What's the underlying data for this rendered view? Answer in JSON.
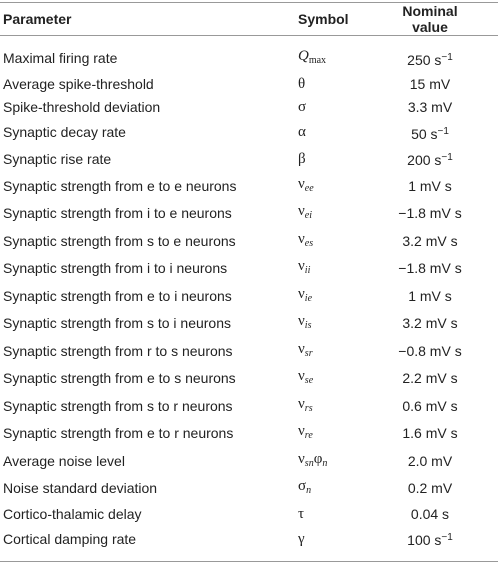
{
  "table": {
    "header": [
      "Parameter",
      "Symbol",
      "Nominal value"
    ],
    "rows": [
      {
        "parameter": "Maximal firing rate",
        "symbol": [
          {
            "text": "Q",
            "italic": true
          },
          {
            "text": "max",
            "sub": true
          }
        ],
        "value": [
          {
            "text": "250 s"
          },
          {
            "text": "−1",
            "sup": true
          }
        ]
      },
      {
        "parameter": "Average spike-threshold",
        "symbol": [
          {
            "text": "θ"
          }
        ],
        "value": [
          {
            "text": "15 mV"
          }
        ]
      },
      {
        "parameter": "Spike-threshold deviation",
        "symbol": [
          {
            "text": "σ"
          }
        ],
        "value": [
          {
            "text": "3.3 mV"
          }
        ]
      },
      {
        "parameter": "Synaptic decay rate",
        "symbol": [
          {
            "text": "α"
          }
        ],
        "value": [
          {
            "text": "50 s"
          },
          {
            "text": "−1",
            "sup": true
          }
        ]
      },
      {
        "parameter": "Synaptic rise rate",
        "symbol": [
          {
            "text": "β"
          }
        ],
        "value": [
          {
            "text": "200 s"
          },
          {
            "text": "−1",
            "sup": true
          }
        ]
      },
      {
        "parameter": "Synaptic strength from e to e neurons",
        "symbol": [
          {
            "text": "ν"
          },
          {
            "text": "ee",
            "sub": true,
            "italic": true
          }
        ],
        "value": [
          {
            "text": "1 mV s"
          }
        ]
      },
      {
        "parameter": "Synaptic strength from i to e neurons",
        "symbol": [
          {
            "text": "ν"
          },
          {
            "text": "ei",
            "sub": true,
            "italic": true
          }
        ],
        "value": [
          {
            "text": "−1.8 mV s"
          }
        ]
      },
      {
        "parameter": "Synaptic strength from s to e neurons",
        "symbol": [
          {
            "text": "ν"
          },
          {
            "text": "es",
            "sub": true,
            "italic": true
          }
        ],
        "value": [
          {
            "text": "3.2 mV s"
          }
        ]
      },
      {
        "parameter": "Synaptic strength from i to i neurons",
        "symbol": [
          {
            "text": "ν"
          },
          {
            "text": "ii",
            "sub": true,
            "italic": true
          }
        ],
        "value": [
          {
            "text": "−1.8 mV s"
          }
        ]
      },
      {
        "parameter": "Synaptic strength from e to i neurons",
        "symbol": [
          {
            "text": "ν"
          },
          {
            "text": "ie",
            "sub": true,
            "italic": true
          }
        ],
        "value": [
          {
            "text": "1 mV s"
          }
        ]
      },
      {
        "parameter": "Synaptic strength from s to i neurons",
        "symbol": [
          {
            "text": "ν"
          },
          {
            "text": "is",
            "sub": true,
            "italic": true
          }
        ],
        "value": [
          {
            "text": "3.2 mV s"
          }
        ]
      },
      {
        "parameter": "Synaptic strength from r to s neurons",
        "symbol": [
          {
            "text": "ν"
          },
          {
            "text": "sr",
            "sub": true,
            "italic": true
          }
        ],
        "value": [
          {
            "text": "−0.8 mV s"
          }
        ]
      },
      {
        "parameter": "Synaptic strength from e to s neurons",
        "symbol": [
          {
            "text": "ν"
          },
          {
            "text": "se",
            "sub": true,
            "italic": true
          }
        ],
        "value": [
          {
            "text": "2.2 mV s"
          }
        ]
      },
      {
        "parameter": "Synaptic strength from s to r neurons",
        "symbol": [
          {
            "text": "ν"
          },
          {
            "text": "rs",
            "sub": true,
            "italic": true
          }
        ],
        "value": [
          {
            "text": "0.6 mV s"
          }
        ]
      },
      {
        "parameter": "Synaptic strength from e to r neurons",
        "symbol": [
          {
            "text": "ν"
          },
          {
            "text": "re",
            "sub": true,
            "italic": true
          }
        ],
        "value": [
          {
            "text": "1.6 mV s"
          }
        ]
      },
      {
        "parameter": "Average noise level",
        "symbol": [
          {
            "text": "ν"
          },
          {
            "text": "sn",
            "sub": true,
            "italic": true
          },
          {
            "text": "φ"
          },
          {
            "text": "n",
            "sub": true,
            "italic": true
          }
        ],
        "value": [
          {
            "text": "2.0 mV"
          }
        ]
      },
      {
        "parameter": "Noise standard deviation",
        "symbol": [
          {
            "text": "σ"
          },
          {
            "text": "n",
            "sub": true,
            "italic": true
          }
        ],
        "value": [
          {
            "text": "0.2 mV"
          }
        ]
      },
      {
        "parameter": "Cortico-thalamic delay",
        "symbol": [
          {
            "text": "τ"
          }
        ],
        "value": [
          {
            "text": "0.04 s"
          }
        ]
      },
      {
        "parameter": "Cortical damping rate",
        "symbol": [
          {
            "text": "γ"
          }
        ],
        "value": [
          {
            "text": "100 s"
          },
          {
            "text": "−1",
            "sup": true
          }
        ]
      }
    ]
  }
}
